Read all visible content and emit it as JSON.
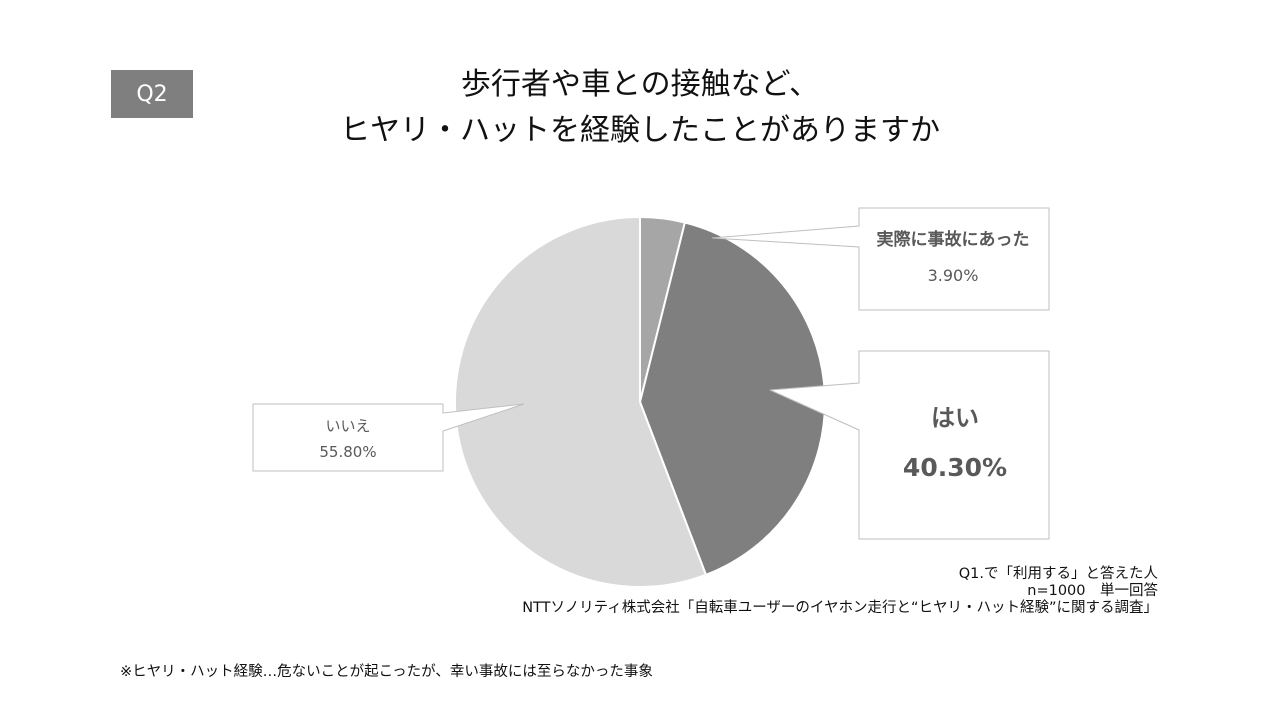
{
  "badge": "Q2",
  "title_lines": [
    "歩行者や車との接触など、",
    "ヒヤリ・ハットを経験したことがありますか"
  ],
  "chart_data": {
    "type": "pie",
    "title": "歩行者や車との接触など、ヒヤリ・ハットを経験したことがありますか",
    "slices": [
      {
        "label": "実際に事故にあった",
        "value": 3.9,
        "value_label": "3.90%",
        "color": "#a6a6a6"
      },
      {
        "label": "はい",
        "value": 40.3,
        "value_label": "40.30%",
        "color": "#7f7f7f"
      },
      {
        "label": "いいえ",
        "value": 55.8,
        "value_label": "55.80%",
        "color": "#d9d9d9"
      }
    ]
  },
  "source": {
    "line1": "Q1.で「利用する」と答えた人",
    "line2": "n=1000　単一回答",
    "line3": "NTTソノリティ株式会社「自転車ユーザーのイヤホン走行と“ヒヤリ・ハット経験”に関する調査」"
  },
  "footnote": "※ヒヤリ・ハット経験…危ないことが起こったが、幸い事故には至らなかった事象"
}
